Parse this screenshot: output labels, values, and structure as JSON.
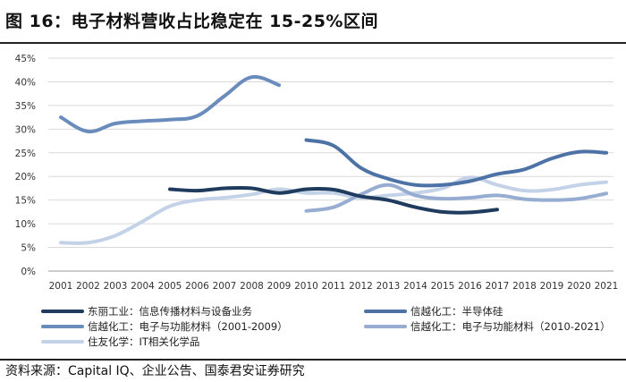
{
  "header": {
    "title": "图 16：电子材料营收占比稳定在 15-25%区间"
  },
  "footer": {
    "source": "资料来源：Capital IQ、企业公告、国泰君安证券研究"
  },
  "chart_data": {
    "type": "line",
    "title": "图 16：电子材料营收占比稳定在 15-25%区间",
    "xlabel": "",
    "ylabel": "",
    "categories": [
      "2001",
      "2002",
      "2003",
      "2004",
      "2005",
      "2006",
      "2007",
      "2008",
      "2009",
      "2010",
      "2011",
      "2012",
      "2013",
      "2014",
      "2015",
      "2016",
      "2017",
      "2018",
      "2019",
      "2020",
      "2021"
    ],
    "yticks": [
      "0%",
      "5%",
      "10%",
      "15%",
      "20%",
      "25%",
      "30%",
      "35%",
      "40%",
      "45%"
    ],
    "ylim": [
      0,
      45
    ],
    "grid": true,
    "legend_position": "bottom",
    "series": [
      {
        "name": "东丽工业：信息传播材料与设备业务",
        "color": "#1f3b5e",
        "values": [
          null,
          null,
          null,
          null,
          17.3,
          17.0,
          17.5,
          17.5,
          16.5,
          17.3,
          17.2,
          15.8,
          15.0,
          13.5,
          12.5,
          12.4,
          13.0,
          null,
          null,
          null,
          null
        ]
      },
      {
        "name": "信越化工：半导体硅",
        "color": "#4d72a6",
        "values": [
          null,
          null,
          null,
          null,
          null,
          null,
          null,
          null,
          null,
          27.7,
          26.5,
          21.8,
          19.5,
          18.2,
          18.2,
          19.0,
          20.5,
          21.5,
          23.8,
          25.2,
          25.0
        ]
      },
      {
        "name": "信越化工：电子与功能材料（2001-2009）",
        "color": "#6a8cbd",
        "values": [
          32.5,
          29.5,
          31.2,
          31.7,
          32.0,
          32.8,
          37.0,
          41.0,
          39.3,
          null,
          null,
          null,
          null,
          null,
          null,
          null,
          null,
          null,
          null,
          null,
          null
        ]
      },
      {
        "name": "信越化工：电子与功能材料（2010-2021）",
        "color": "#96add1",
        "values": [
          null,
          null,
          null,
          null,
          null,
          null,
          null,
          null,
          null,
          12.7,
          13.5,
          16.2,
          18.2,
          16.0,
          15.3,
          15.5,
          16.0,
          15.2,
          15.0,
          15.3,
          16.4
        ]
      },
      {
        "name": "住友化学：IT相关化学品",
        "color": "#c4d2e8",
        "values": [
          6.0,
          6.0,
          7.5,
          10.5,
          13.7,
          15.0,
          15.5,
          16.2,
          17.3,
          16.5,
          16.5,
          15.5,
          16.0,
          16.5,
          17.5,
          19.8,
          18.2,
          17.0,
          17.2,
          18.2,
          18.8
        ]
      }
    ]
  }
}
